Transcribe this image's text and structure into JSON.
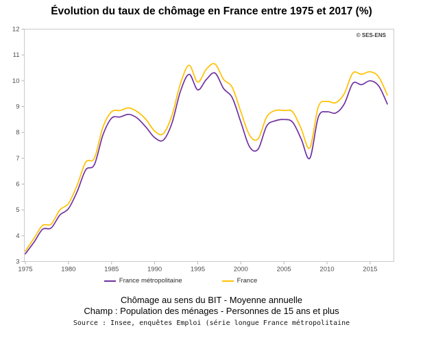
{
  "title": "Évolution du taux de chômage en France entre 1975 et 2017 (%)",
  "copyright": "© SES-ENS",
  "footer": {
    "line1": "Chômage au sens du BIT - Moyenne annuelle",
    "line2": "Champ : Population des ménages - Personnes de 15 ans et plus",
    "source": "Source : Insee, enquêtes Emploi (série longue France métropolitaine"
  },
  "chart_data": {
    "type": "line",
    "title": "Évolution du taux de chômage en France entre 1975 et 2017 (%)",
    "xlabel": "",
    "ylabel": "",
    "ylim": [
      3,
      12
    ],
    "y_ticks": [
      3,
      4,
      5,
      6,
      7,
      8,
      9,
      10,
      11,
      12
    ],
    "x_ticks": [
      1975,
      1980,
      1985,
      1990,
      1995,
      2000,
      2005,
      2010,
      2015
    ],
    "grid": false,
    "line_style": "smooth",
    "legend_position": "bottom",
    "x": [
      1975,
      1976,
      1977,
      1978,
      1979,
      1980,
      1981,
      1982,
      1983,
      1984,
      1985,
      1986,
      1987,
      1988,
      1989,
      1990,
      1991,
      1992,
      1993,
      1994,
      1995,
      1996,
      1997,
      1998,
      1999,
      2000,
      2001,
      2002,
      2003,
      2004,
      2005,
      2006,
      2007,
      2008,
      2009,
      2010,
      2011,
      2012,
      2013,
      2014,
      2015,
      2016,
      2017
    ],
    "series": [
      {
        "name": "France métropolitaine",
        "color": "#7030A0",
        "values": [
          3.3,
          3.75,
          4.25,
          4.3,
          4.8,
          5.05,
          5.7,
          6.55,
          6.75,
          7.9,
          8.55,
          8.6,
          8.7,
          8.55,
          8.2,
          7.8,
          7.7,
          8.35,
          9.6,
          10.25,
          9.65,
          10.05,
          10.3,
          9.7,
          9.35,
          8.4,
          7.45,
          7.35,
          8.25,
          8.45,
          8.5,
          8.4,
          7.75,
          7.0,
          8.6,
          8.8,
          8.75,
          9.1,
          9.9,
          9.85,
          10.0,
          9.8,
          9.1
        ]
      },
      {
        "name": "France",
        "color": "#FFC000",
        "values": [
          3.4,
          3.9,
          4.4,
          4.45,
          5.0,
          5.25,
          5.95,
          6.85,
          7.0,
          8.2,
          8.8,
          8.85,
          8.95,
          8.8,
          8.5,
          8.05,
          7.95,
          8.65,
          9.9,
          10.6,
          9.95,
          10.45,
          10.65,
          10.05,
          9.75,
          8.8,
          7.9,
          7.75,
          8.6,
          8.85,
          8.85,
          8.8,
          8.15,
          7.4,
          9.0,
          9.2,
          9.15,
          9.5,
          10.3,
          10.25,
          10.35,
          10.15,
          9.45
        ]
      }
    ]
  }
}
